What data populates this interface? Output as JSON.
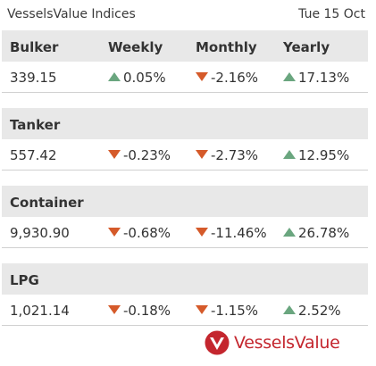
{
  "header": {
    "title": "VesselsValue Indices",
    "date": "Tue 15 Oct"
  },
  "columns": {
    "weekly": "Weekly",
    "monthly": "Monthly",
    "yearly": "Yearly"
  },
  "sections": [
    {
      "name": "Bulker",
      "value": "339.15",
      "weekly": "0.05%",
      "weekly_dir": "up",
      "monthly": "-2.16%",
      "monthly_dir": "down",
      "yearly": "17.13%",
      "yearly_dir": "up"
    },
    {
      "name": "Tanker",
      "value": "557.42",
      "weekly": "-0.23%",
      "weekly_dir": "down",
      "monthly": "-2.73%",
      "monthly_dir": "down",
      "yearly": "12.95%",
      "yearly_dir": "up"
    },
    {
      "name": "Container",
      "value": "9,930.90",
      "weekly": "-0.68%",
      "weekly_dir": "down",
      "monthly": "-11.46%",
      "monthly_dir": "down",
      "yearly": "26.78%",
      "yearly_dir": "up"
    },
    {
      "name": "LPG",
      "value": "1,021.14",
      "weekly": "-0.18%",
      "weekly_dir": "down",
      "monthly": "-1.15%",
      "monthly_dir": "down",
      "yearly": "2.52%",
      "yearly_dir": "up"
    }
  ],
  "logo": {
    "text": "VesselsValue"
  },
  "colors": {
    "up": "#6aa67f",
    "down": "#d55a2a",
    "brand": "#c4262e",
    "header_bg": "#e8e8e8"
  }
}
